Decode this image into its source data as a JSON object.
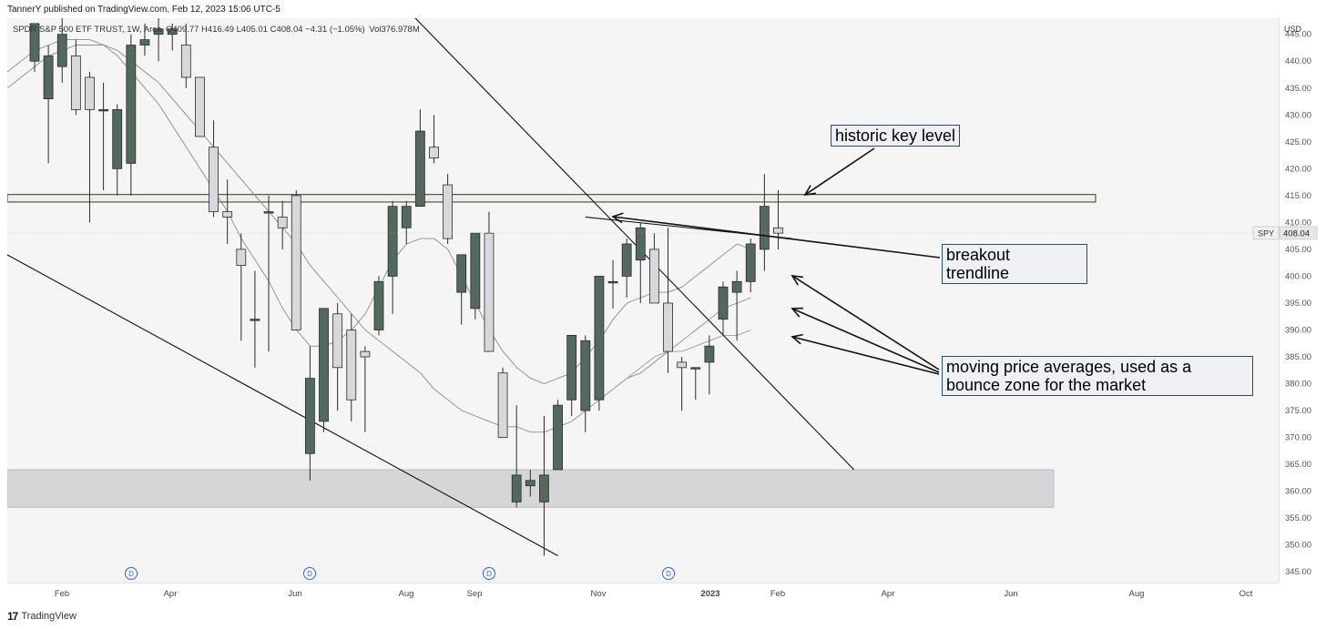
{
  "header": {
    "published": "TannerY published on TradingView.com, Feb 12, 2023 15:06 UTC-5"
  },
  "legend": {
    "symbol": "SPDR S&P 500 ETF TRUST, 1W, Arca",
    "ohlc": "O409.77 H416.49 L405.01 C408.04 −4.31 (−1.05%)",
    "volume": "Vol376.978M"
  },
  "price_axis": {
    "currency": "USD",
    "ticks": [
      "445.00",
      "440.00",
      "435.00",
      "430.00",
      "425.00",
      "420.00",
      "415.00",
      "410.00",
      "405.00",
      "400.00",
      "395.00",
      "390.00",
      "385.00",
      "380.00",
      "375.00",
      "370.00",
      "365.00",
      "360.00",
      "355.00",
      "350.00",
      "345.00"
    ],
    "last_label_symbol": "SPY",
    "last_label_price": "408.04"
  },
  "time_axis": {
    "labels": [
      "Feb",
      "Apr",
      "Jun",
      "Aug",
      "Sep",
      "Nov",
      "2023",
      "Feb",
      "Apr",
      "Jun",
      "Aug",
      "Oct"
    ]
  },
  "dividend_marker": "D",
  "annotations": {
    "key_level": "historic key level",
    "breakout_line1": "breakout",
    "breakout_line2": "trendline",
    "averages_line1": "moving price averages, used as a",
    "averages_line2": "bounce zone for the market"
  },
  "footer": {
    "logo": "17",
    "brand": "TradingView"
  },
  "colors": {
    "up_candle": "#52695e",
    "down_candle": "#d8d8dc",
    "candle_border": "#2b2b2b",
    "zone": "#d6d6d9",
    "key_level_fill": "#eeeee6",
    "background": "#f5f5f5"
  },
  "chart_data": {
    "type": "candlestick",
    "symbol": "SPY",
    "interval": "1W",
    "ylim": [
      343,
      448
    ],
    "last_price": 408.04,
    "candles": [
      {
        "o": 440,
        "h": 447,
        "l": 438,
        "c": 447
      },
      {
        "o": 433,
        "h": 443,
        "l": 421,
        "c": 441
      },
      {
        "o": 439,
        "h": 448,
        "l": 436,
        "c": 445
      },
      {
        "o": 441,
        "h": 444,
        "l": 430,
        "c": 431
      },
      {
        "o": 437,
        "h": 438,
        "l": 410,
        "c": 431
      },
      {
        "o": 431,
        "h": 436,
        "l": 416,
        "c": 431
      },
      {
        "o": 420,
        "h": 432,
        "l": 415,
        "c": 431
      },
      {
        "o": 421,
        "h": 445,
        "l": 415,
        "c": 443
      },
      {
        "o": 443,
        "h": 447,
        "l": 441,
        "c": 444
      },
      {
        "o": 445,
        "h": 450,
        "l": 440,
        "c": 446
      },
      {
        "o": 445,
        "h": 447,
        "l": 442,
        "c": 446
      },
      {
        "o": 443,
        "h": 447,
        "l": 435,
        "c": 437
      },
      {
        "o": 437,
        "h": 437,
        "l": 426,
        "c": 426
      },
      {
        "o": 424,
        "h": 429,
        "l": 411,
        "c": 412
      },
      {
        "o": 412,
        "h": 418,
        "l": 406,
        "c": 411
      },
      {
        "o": 405,
        "h": 408,
        "l": 388,
        "c": 402
      },
      {
        "o": 392,
        "h": 401,
        "l": 383,
        "c": 392
      },
      {
        "o": 412,
        "h": 415,
        "l": 386,
        "c": 412
      },
      {
        "o": 411,
        "h": 414,
        "l": 405,
        "c": 409
      },
      {
        "o": 415,
        "h": 416,
        "l": 390,
        "c": 390
      },
      {
        "o": 367,
        "h": 387,
        "l": 362,
        "c": 381
      },
      {
        "o": 373,
        "h": 394,
        "l": 371,
        "c": 394
      },
      {
        "o": 393,
        "h": 395,
        "l": 375,
        "c": 383
      },
      {
        "o": 390,
        "h": 393,
        "l": 373,
        "c": 377
      },
      {
        "o": 386,
        "h": 387,
        "l": 371,
        "c": 385
      },
      {
        "o": 390,
        "h": 400,
        "l": 389,
        "c": 399
      },
      {
        "o": 400,
        "h": 414,
        "l": 393,
        "c": 413
      },
      {
        "o": 409,
        "h": 414,
        "l": 406,
        "c": 413
      },
      {
        "o": 413,
        "h": 431,
        "l": 413,
        "c": 427
      },
      {
        "o": 424,
        "h": 430,
        "l": 421,
        "c": 422
      },
      {
        "o": 417,
        "h": 419,
        "l": 406,
        "c": 407
      },
      {
        "o": 397,
        "h": 404,
        "l": 391,
        "c": 404
      },
      {
        "o": 394,
        "h": 407,
        "l": 392,
        "c": 408
      },
      {
        "o": 408,
        "h": 412,
        "l": 386,
        "c": 386
      },
      {
        "o": 382,
        "h": 383,
        "l": 370,
        "c": 370
      },
      {
        "o": 358,
        "h": 376,
        "l": 357,
        "c": 363
      },
      {
        "o": 361,
        "h": 364,
        "l": 359,
        "c": 362
      },
      {
        "o": 358,
        "h": 374,
        "l": 348,
        "c": 363
      },
      {
        "o": 364,
        "h": 377,
        "l": 364,
        "c": 376
      },
      {
        "o": 377,
        "h": 389,
        "l": 374,
        "c": 389
      },
      {
        "o": 375,
        "h": 389,
        "l": 371,
        "c": 388
      },
      {
        "o": 377,
        "h": 400,
        "l": 375,
        "c": 400
      },
      {
        "o": 399,
        "h": 403,
        "l": 394,
        "c": 399
      },
      {
        "o": 400,
        "h": 407,
        "l": 396,
        "c": 406
      },
      {
        "o": 403,
        "h": 410,
        "l": 395,
        "c": 409
      },
      {
        "o": 405,
        "h": 408,
        "l": 396,
        "c": 395
      },
      {
        "o": 395,
        "h": 409,
        "l": 382,
        "c": 386
      },
      {
        "o": 384,
        "h": 385,
        "l": 375,
        "c": 383
      },
      {
        "o": 383,
        "h": 383,
        "l": 377,
        "c": 383
      },
      {
        "o": 384,
        "h": 389,
        "l": 378,
        "c": 387
      },
      {
        "o": 392,
        "h": 399,
        "l": 389,
        "c": 398
      },
      {
        "o": 397,
        "h": 401,
        "l": 388,
        "c": 399
      },
      {
        "o": 399,
        "h": 407,
        "l": 397,
        "c": 406
      },
      {
        "o": 405,
        "h": 419,
        "l": 401,
        "c": 413
      },
      {
        "o": 409,
        "h": 416,
        "l": 405,
        "c": 408
      }
    ],
    "moving_averages": [
      {
        "name": "",
        "values": [
          435,
          437,
          439,
          441,
          442,
          443,
          443,
          443,
          442,
          440,
          438,
          436,
          433,
          430,
          427,
          424,
          421,
          418,
          415,
          412,
          409,
          406,
          402,
          399,
          396,
          393,
          390,
          388,
          386,
          384,
          382,
          379,
          377,
          375,
          374,
          373,
          372,
          372,
          371,
          371,
          372,
          373,
          375,
          377,
          379,
          381,
          382,
          384,
          386,
          388,
          390,
          392,
          394,
          395,
          396
        ]
      },
      {
        "name": "",
        "values": [
          438,
          440,
          442,
          443,
          444,
          444,
          444,
          443,
          441,
          438,
          435,
          432,
          428,
          424,
          420,
          416,
          412,
          407,
          403,
          399,
          394,
          390,
          387,
          387,
          388,
          390,
          393,
          398,
          403,
          406,
          407,
          407,
          405,
          400,
          395,
          390,
          386,
          383,
          381,
          380,
          381,
          382,
          385,
          388,
          392,
          395,
          396,
          397,
          397,
          398,
          400,
          402,
          404,
          406,
          405
        ]
      },
      {
        "name": "",
        "values": [
          null,
          null,
          null,
          null,
          null,
          null,
          null,
          null,
          null,
          null,
          null,
          null,
          null,
          null,
          null,
          null,
          null,
          null,
          null,
          null,
          null,
          null,
          null,
          null,
          null,
          null,
          null,
          null,
          null,
          null,
          null,
          null,
          null,
          null,
          null,
          null,
          null,
          null,
          null,
          null,
          null,
          null,
          null,
          null,
          null,
          381,
          383,
          385,
          386,
          386,
          387,
          388,
          389,
          389,
          390
        ]
      }
    ],
    "levels": [
      {
        "type": "band",
        "from": 413.8,
        "to": 415.2
      },
      {
        "type": "zone",
        "from": 357,
        "to": 364
      }
    ],
    "trendlines": [
      {
        "p1": {
          "i": 25,
          "y": 455
        },
        "p2": {
          "i": 59.5,
          "y": 364
        }
      },
      {
        "p1": {
          "i": -2,
          "y": 404
        },
        "p2": {
          "i": 38,
          "y": 348
        }
      },
      {
        "p1": {
          "i": 40,
          "y": 411
        },
        "p2": {
          "i": 55,
          "y": 407
        }
      }
    ]
  }
}
